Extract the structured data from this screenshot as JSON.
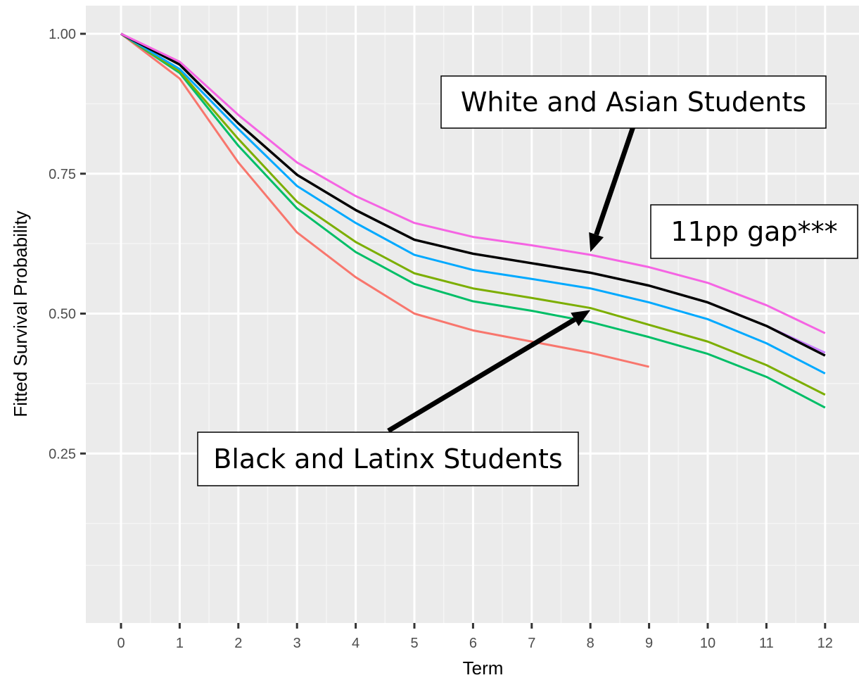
{
  "chart_data": {
    "type": "line",
    "title": "",
    "xlabel": "Term",
    "ylabel": "Fitted Survival Probability",
    "x": [
      0,
      1,
      2,
      3,
      4,
      5,
      6,
      7,
      8,
      9,
      10,
      11,
      12
    ],
    "x_ticks": [
      "0",
      "1",
      "2",
      "3",
      "4",
      "5",
      "6",
      "7",
      "8",
      "9",
      "10",
      "11",
      "12"
    ],
    "y_ticks": [
      "1.00",
      "0.75",
      "0.50",
      "0.25"
    ],
    "xlim": [
      -0.55,
      12.25
    ],
    "ylim": [
      0.0,
      1.05
    ],
    "grid": true,
    "background": "#ebebeb",
    "series": [
      {
        "color": "#f8766d",
        "values": [
          1.0,
          0.92,
          0.77,
          0.645,
          0.565,
          0.5,
          0.47,
          0.45,
          0.43,
          0.405,
          null,
          null,
          null
        ]
      },
      {
        "color": "#00be67",
        "values": [
          1.0,
          0.93,
          0.8,
          0.688,
          0.61,
          0.553,
          0.522,
          0.505,
          0.485,
          0.458,
          0.428,
          0.387,
          0.332
        ]
      },
      {
        "color": "#7cae00",
        "values": [
          1.0,
          0.933,
          0.812,
          0.7,
          0.628,
          0.572,
          0.545,
          0.528,
          0.51,
          0.48,
          0.45,
          0.408,
          0.355
        ]
      },
      {
        "color": "#00a9ff",
        "values": [
          1.0,
          0.937,
          0.83,
          0.728,
          0.662,
          0.605,
          0.578,
          0.562,
          0.545,
          0.52,
          0.49,
          0.447,
          0.393
        ]
      },
      {
        "color": "#c77cff",
        "values": [
          1.0,
          0.945,
          0.84,
          0.748,
          0.685,
          0.632,
          0.607,
          0.59,
          0.573,
          0.55,
          0.52,
          0.478,
          0.43
        ]
      },
      {
        "color": "#000000",
        "values": [
          1.0,
          0.945,
          0.84,
          0.748,
          0.685,
          0.632,
          0.607,
          0.59,
          0.573,
          0.55,
          0.52,
          0.478,
          0.425
        ]
      },
      {
        "color": "#f564e3",
        "values": [
          1.0,
          0.95,
          0.855,
          0.77,
          0.71,
          0.662,
          0.637,
          0.622,
          0.605,
          0.583,
          0.555,
          0.515,
          0.465
        ]
      }
    ],
    "annotations": [
      {
        "text": "White and Asian Students",
        "arrow_to": {
          "x": 8.0,
          "y": 0.605
        }
      },
      {
        "text": "11pp gap***"
      },
      {
        "text": "Black and Latinx Students",
        "arrow_to": {
          "x": 8.0,
          "y": 0.51
        }
      }
    ]
  }
}
